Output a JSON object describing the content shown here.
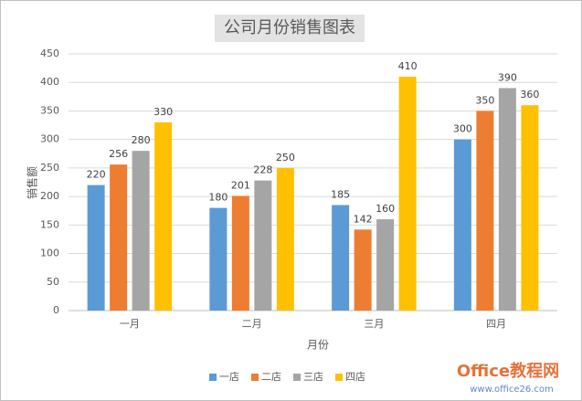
{
  "chart_data": {
    "type": "bar",
    "title": "公司月份销售图表",
    "x_label": "月份",
    "y_label": "销售额",
    "categories": [
      "一月",
      "二月",
      "三月",
      "四月"
    ],
    "series": [
      {
        "name": "一店",
        "color": "#5b9bd5",
        "values": [
          220,
          180,
          185,
          300
        ]
      },
      {
        "name": "二店",
        "color": "#ed7d31",
        "values": [
          256,
          201,
          142,
          350
        ]
      },
      {
        "name": "三店",
        "color": "#a5a5a5",
        "values": [
          280,
          228,
          160,
          390
        ]
      },
      {
        "name": "四店",
        "color": "#ffc000",
        "values": [
          330,
          250,
          410,
          360
        ]
      }
    ],
    "ylim": [
      0,
      450
    ],
    "yticks": [
      0,
      50,
      100,
      150,
      200,
      250,
      300,
      350,
      400,
      450
    ],
    "grid": true,
    "legend": "bottom"
  },
  "watermark": {
    "title": "Office教程网",
    "url": "www.office26.com"
  }
}
